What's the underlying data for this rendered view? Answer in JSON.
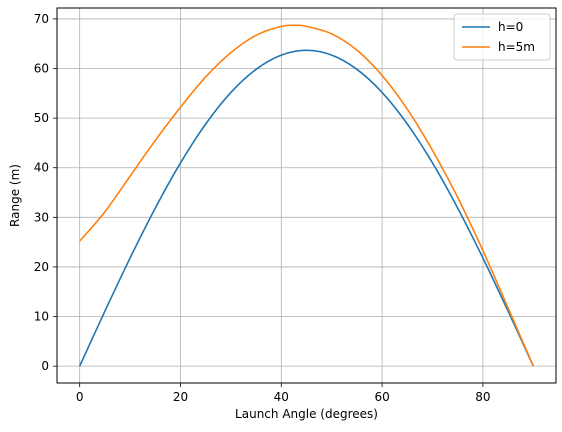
{
  "chart_data": {
    "type": "line",
    "title": "",
    "xlabel": "Launch Angle (degrees)",
    "ylabel": "Range (m)",
    "xlim": [
      -4.5,
      94.5
    ],
    "ylim": [
      -3.4,
      72.2
    ],
    "xticks": [
      0,
      20,
      40,
      60,
      80
    ],
    "yticks": [
      0,
      10,
      20,
      30,
      40,
      50,
      60,
      70
    ],
    "grid": true,
    "legend_position": "top-right",
    "series": [
      {
        "name": "h=0",
        "color": "#1f77b4",
        "x": [
          0,
          5,
          10,
          15,
          20,
          25,
          30,
          35,
          40,
          45,
          50,
          55,
          60,
          65,
          70,
          75,
          80,
          85,
          90
        ],
        "y": [
          0,
          11.07,
          21.8,
          31.86,
          40.96,
          48.81,
          55.17,
          59.84,
          62.7,
          63.66,
          62.7,
          59.84,
          55.17,
          48.81,
          40.96,
          31.86,
          21.8,
          11.07,
          0
        ]
      },
      {
        "name": "h=5m",
        "color": "#ff7f0e",
        "x": [
          0,
          5,
          10,
          15,
          20,
          25,
          30,
          35,
          40,
          43,
          45,
          50,
          55,
          60,
          65,
          70,
          75,
          80,
          85,
          90
        ],
        "y": [
          25.2,
          31.1,
          38.3,
          45.5,
          52.2,
          58.3,
          63.2,
          66.7,
          68.5,
          68.7,
          68.5,
          67.0,
          63.7,
          58.6,
          51.8,
          43.5,
          34.0,
          23.3,
          11.7,
          0
        ]
      }
    ]
  }
}
